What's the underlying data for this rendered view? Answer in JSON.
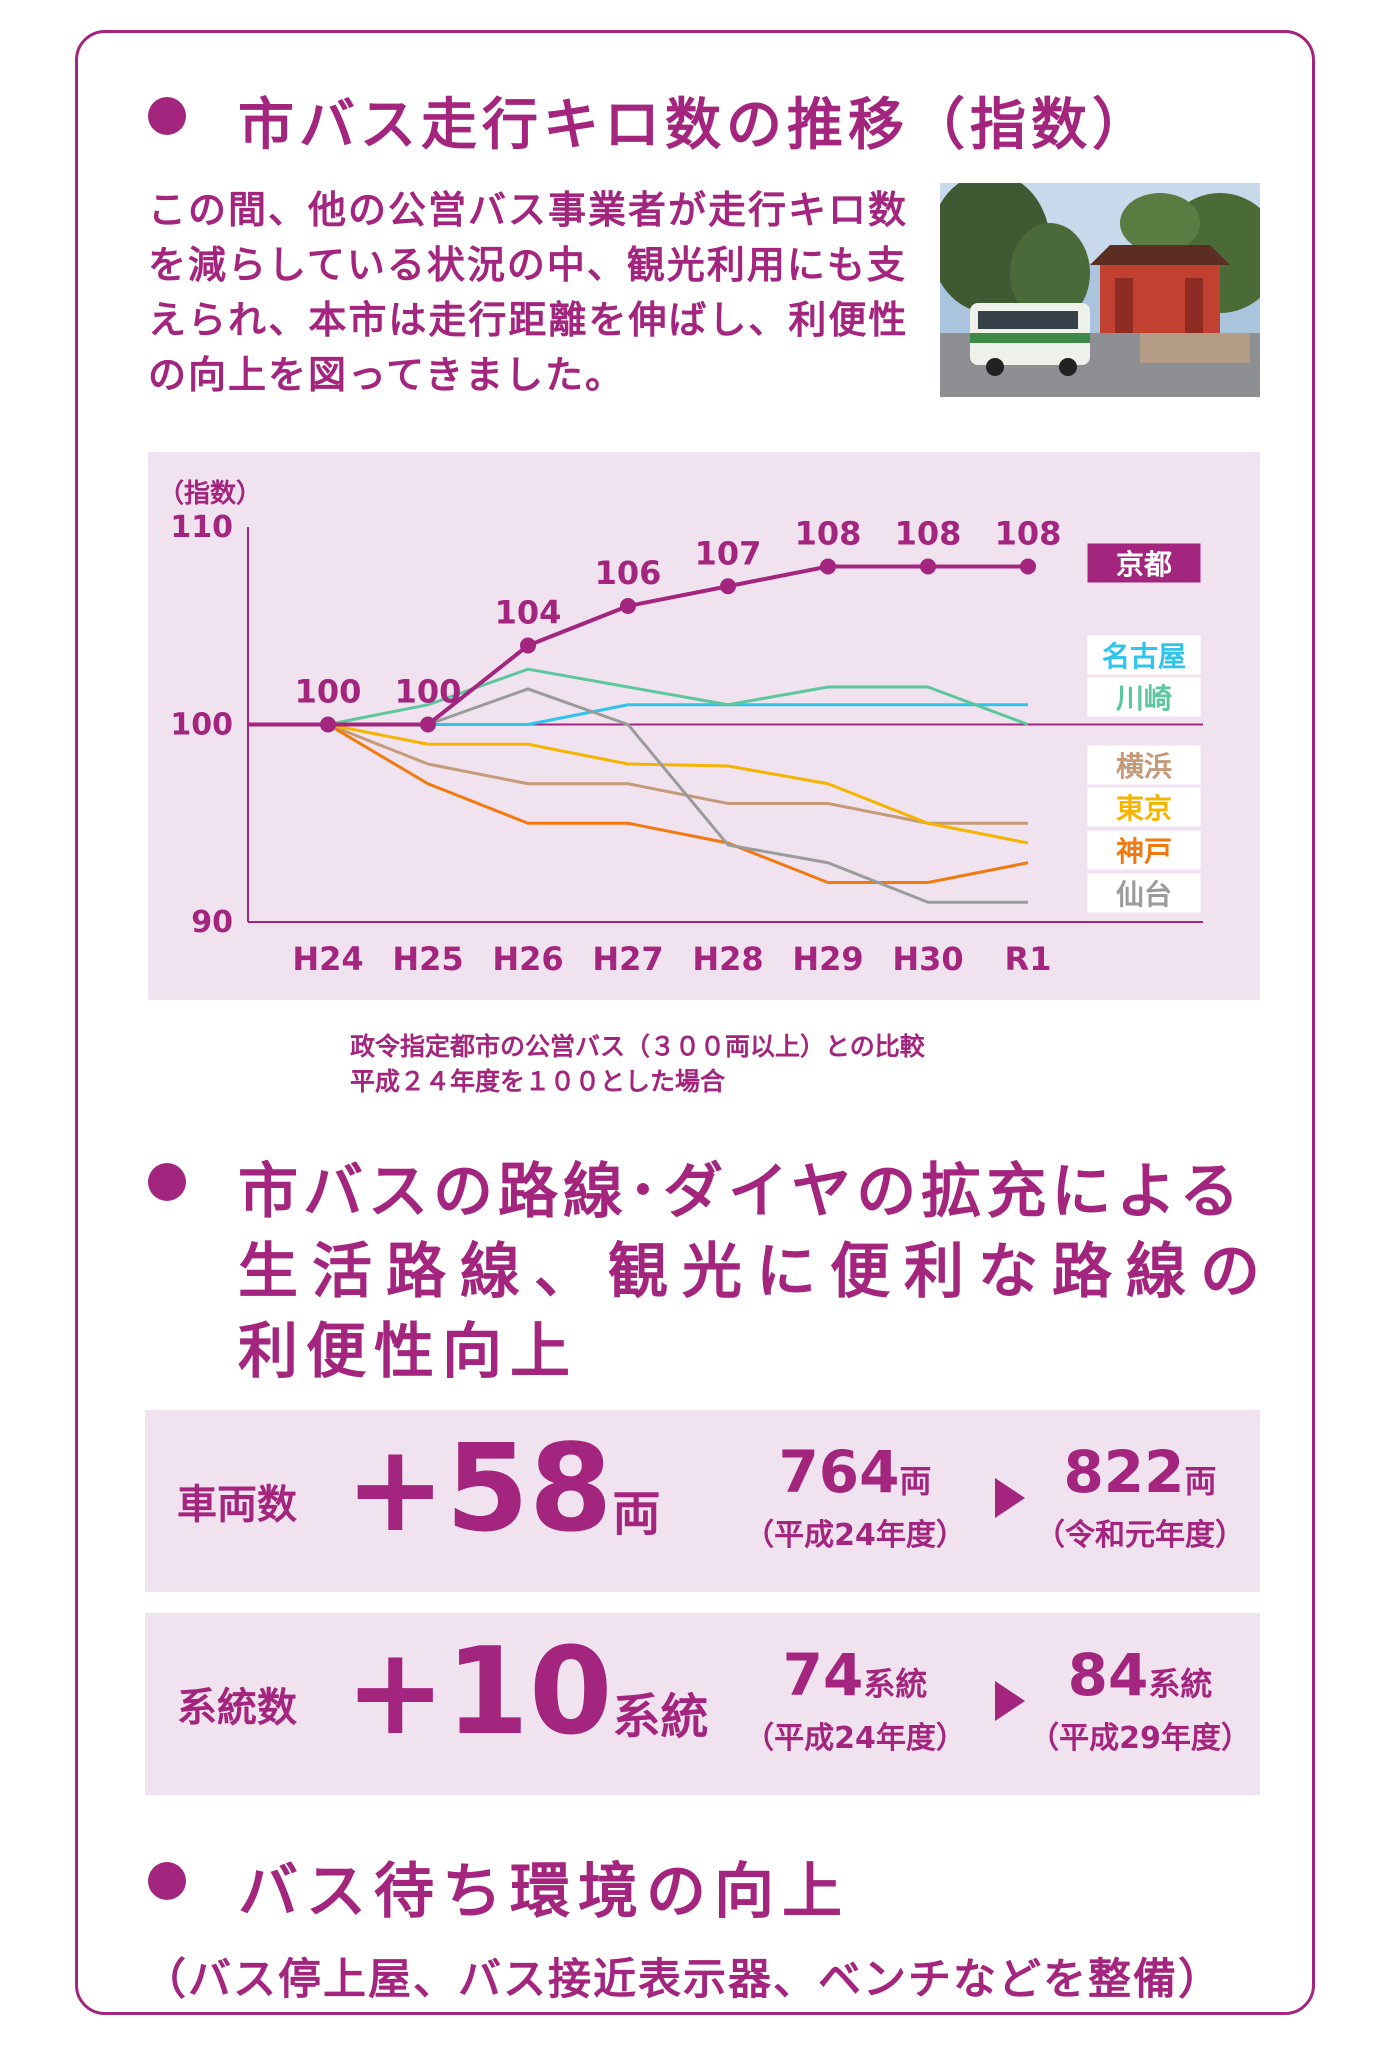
{
  "heading1": "市バス走行キロ数の推移（指数）",
  "intro": "この間、他の公営バス事業者が走行キロ数を減らしている状況の中、観光利用にも支えられ、本市は走行距離を伸ばし、利便性の向上を図ってきました。",
  "chart_data": {
    "type": "line",
    "ylabel": "（指数）",
    "ylim": [
      90,
      110
    ],
    "yticks": [
      "110",
      "100",
      "90"
    ],
    "categories": [
      "H24",
      "H25",
      "H26",
      "H27",
      "H28",
      "H29",
      "H30",
      "R1"
    ],
    "series": [
      {
        "name": "京都",
        "color": "#a3257e",
        "values": [
          100,
          100,
          104,
          106,
          107,
          108,
          108,
          108
        ],
        "labels": [
          "100",
          "100",
          "104",
          "106",
          "107",
          "108",
          "108",
          "108"
        ]
      },
      {
        "name": "名古屋",
        "color": "#2ec4ec",
        "values": [
          100,
          100,
          100,
          101,
          101,
          101,
          101,
          101
        ]
      },
      {
        "name": "川崎",
        "color": "#5cc69c",
        "values": [
          100,
          101,
          102.8,
          101.9,
          101,
          101.9,
          101.9,
          100
        ]
      },
      {
        "name": "横浜",
        "color": "#c49a78",
        "values": [
          100,
          98,
          97,
          97,
          96,
          96,
          95,
          95
        ]
      },
      {
        "name": "東京",
        "color": "#f5b400",
        "values": [
          100,
          99,
          99,
          98,
          97.9,
          97,
          95,
          94
        ]
      },
      {
        "name": "神戸",
        "color": "#f2790f",
        "values": [
          100,
          97,
          95,
          95,
          94,
          92,
          92,
          93
        ]
      },
      {
        "name": "仙台",
        "color": "#9b9b9b",
        "values": [
          100,
          100,
          101.8,
          100,
          93.9,
          93,
          91,
          91
        ]
      }
    ]
  },
  "chart_note": [
    "政令指定都市の公営バス（３００両以上）との比較",
    "平成２４年度を１００とした場合"
  ],
  "heading2": [
    "市バスの路線･ダイヤの拡充による",
    "生活路線、観光に便利な路線の",
    "利便性向上"
  ],
  "stats": [
    {
      "label": "車両数",
      "plus": "+58",
      "unit": "両",
      "from": {
        "num": "764",
        "unit": "両",
        "sub": "（平成24年度）"
      },
      "to": {
        "num": "822",
        "unit": "両",
        "sub": "（令和元年度）"
      }
    },
    {
      "label": "系統数",
      "plus": "+10",
      "unit": "系統",
      "from": {
        "num": "74",
        "unit": "系統",
        "sub": "（平成24年度）"
      },
      "to": {
        "num": "84",
        "unit": "系統",
        "sub": "（平成29年度）"
      }
    }
  ],
  "heading3": "バス待ち環境の向上",
  "heading3_sub": "（バス停上屋、バス接近表示器、ベンチなどを整備）",
  "colors": {
    "accent": "#a3257e",
    "panel": "#f0e3ef"
  }
}
